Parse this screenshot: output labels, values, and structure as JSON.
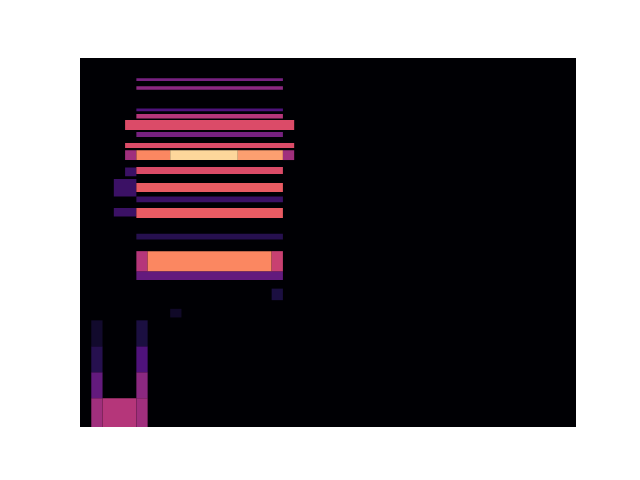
{
  "chart_data": {
    "type": "heatmap",
    "xlim": [
      0,
      44
    ],
    "ylim": [
      0,
      128
    ],
    "tick_labels": false,
    "grid": false,
    "value_range": [
      0,
      1
    ],
    "cells": [
      [
        1,
        2,
        0,
        10,
        0.45
      ],
      [
        1,
        2,
        10,
        19,
        0.3
      ],
      [
        1,
        2,
        19,
        28,
        0.15
      ],
      [
        1,
        2,
        28,
        37,
        0.08
      ],
      [
        2,
        5,
        0,
        10,
        0.5
      ],
      [
        5,
        6,
        0,
        10,
        0.45
      ],
      [
        5,
        6,
        10,
        19,
        0.4
      ],
      [
        5,
        6,
        19,
        28,
        0.25
      ],
      [
        5,
        6,
        28,
        37,
        0.12
      ],
      [
        8,
        9,
        38,
        41,
        0.07
      ],
      [
        17,
        18,
        44,
        48,
        0.12
      ],
      [
        5,
        18,
        51,
        54,
        0.3
      ],
      [
        5,
        6,
        54,
        61,
        0.5
      ],
      [
        6,
        17,
        54,
        61,
        0.75
      ],
      [
        17,
        18,
        54,
        61,
        0.55
      ],
      [
        5,
        18,
        65,
        67,
        0.15
      ],
      [
        3,
        5,
        73,
        76,
        0.2
      ],
      [
        5,
        18,
        72.5,
        76,
        0.65
      ],
      [
        5,
        18,
        78,
        80,
        0.2
      ],
      [
        3,
        5,
        80,
        86,
        0.2
      ],
      [
        5,
        18,
        81.5,
        84.6,
        0.65
      ],
      [
        4,
        5,
        87,
        90,
        0.2
      ],
      [
        5,
        18,
        87.8,
        90.2,
        0.6
      ],
      [
        4,
        5,
        92.6,
        96,
        0.45
      ],
      [
        5,
        8,
        92.6,
        96,
        0.75
      ],
      [
        8,
        14,
        92.6,
        96,
        0.92
      ],
      [
        14,
        18,
        92.6,
        96,
        0.8
      ],
      [
        18,
        19,
        92.6,
        96,
        0.45
      ],
      [
        4,
        19,
        96.8,
        98.5,
        0.6
      ],
      [
        5,
        18,
        100.6,
        102.3,
        0.35
      ],
      [
        4,
        19,
        103,
        106.5,
        0.6
      ],
      [
        5,
        18,
        107,
        108.6,
        0.5
      ],
      [
        5,
        18,
        109.5,
        110.5,
        0.25
      ],
      [
        5,
        18,
        117,
        118.2,
        0.4
      ],
      [
        5,
        18,
        120,
        121,
        0.35
      ]
    ]
  }
}
